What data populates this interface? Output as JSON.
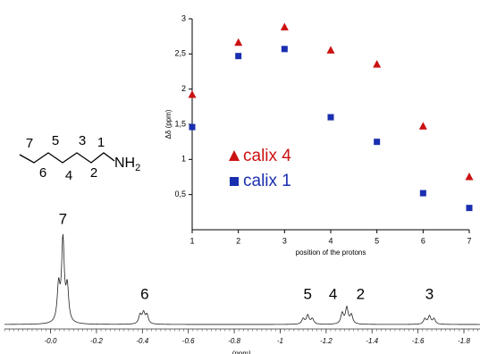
{
  "chart_data": [
    {
      "type": "scatter",
      "x_label": "position of the protons",
      "y_label": "Δδ (ppm)",
      "xlim": [
        1,
        7
      ],
      "xticks": [
        1,
        2,
        3,
        4,
        5,
        6,
        7
      ],
      "ylim": [
        0,
        3
      ],
      "yticks": [
        {
          "value": 0.5,
          "label": "0,5"
        },
        1,
        {
          "value": 1.5,
          "label": "1,5"
        },
        2,
        {
          "value": 2.5,
          "label": "2,5"
        },
        3
      ],
      "x": [
        1,
        2,
        3,
        4,
        5,
        6,
        7
      ],
      "series": [
        {
          "name": "calix 4",
          "color": "#cc1111",
          "marker": "triangle",
          "values": [
            1.92,
            2.66,
            2.88,
            2.55,
            2.35,
            1.47,
            0.75
          ]
        },
        {
          "name": "calix 1",
          "color": "#1a2fb0",
          "marker": "square",
          "values": [
            1.46,
            2.47,
            2.57,
            1.6,
            1.25,
            0.52,
            0.31
          ]
        }
      ]
    },
    {
      "type": "spectrum",
      "x_label": "(ppm)",
      "xlim": [
        0.22,
        -1.87
      ],
      "xticks": [
        {
          "value": 0,
          "label": "-0.0"
        },
        -0.2,
        -0.4,
        -0.6,
        -0.8,
        -1.0,
        -1.2,
        -1.4,
        -1.6,
        -1.8
      ],
      "peaks": [
        {
          "ppm": -0.035,
          "height": 40
        },
        {
          "ppm": -0.054,
          "height": 92
        },
        {
          "ppm": -0.073,
          "height": 38
        },
        {
          "ppm": -0.39,
          "height": 10
        },
        {
          "ppm": -0.405,
          "height": 12
        },
        {
          "ppm": -0.42,
          "height": 10
        },
        {
          "ppm": -1.1,
          "height": 6
        },
        {
          "ppm": -1.12,
          "height": 10
        },
        {
          "ppm": -1.14,
          "height": 6
        },
        {
          "ppm": -1.27,
          "height": 12
        },
        {
          "ppm": -1.29,
          "height": 18
        },
        {
          "ppm": -1.31,
          "height": 10
        },
        {
          "ppm": -1.63,
          "height": 6
        },
        {
          "ppm": -1.65,
          "height": 9
        },
        {
          "ppm": -1.67,
          "height": 6
        }
      ],
      "peak_labels": [
        {
          "text": "7",
          "ppm": -0.054
        },
        {
          "text": "6",
          "ppm": -0.41
        },
        {
          "text": "5",
          "ppm": -1.12
        },
        {
          "text": "4",
          "ppm": -1.23
        },
        {
          "text": "2",
          "ppm": -1.35
        },
        {
          "text": "3",
          "ppm": -1.65
        }
      ]
    }
  ],
  "molecule": {
    "positions_top": [
      "7",
      "5",
      "3",
      "1"
    ],
    "positions_bottom": [
      "6",
      "4",
      "2"
    ],
    "amine": "NH",
    "amine_subscript": "2"
  }
}
